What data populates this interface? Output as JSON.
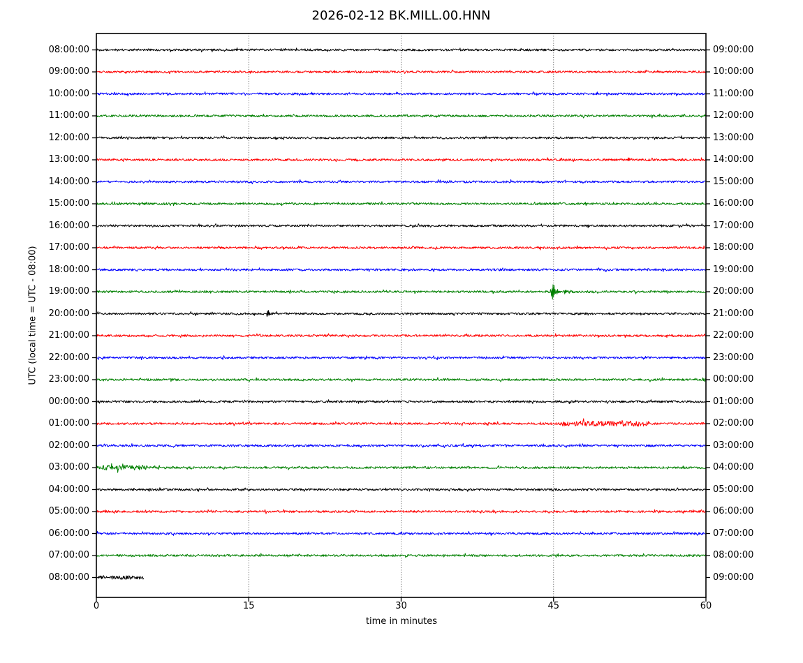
{
  "chart_data": {
    "type": "line",
    "subtype": "helicorder-dayplot",
    "title": "2026-02-12 BK.MILL.00.HNN",
    "xlabel": "time in minutes",
    "ylabel": "UTC (local time = UTC - 08:00)",
    "x_range": [
      0,
      60
    ],
    "x_ticks": [
      "0",
      "15",
      "30",
      "45",
      "60"
    ],
    "x_tick_values": [
      0,
      15,
      30,
      45,
      60
    ],
    "grid": {
      "vertical_minutes": [
        15,
        30,
        45
      ],
      "style": "dotted",
      "color": "#4a4a4a"
    },
    "legend_position": "none",
    "colors_cycle": [
      "#000000",
      "#ff0000",
      "#0000ff",
      "#008000"
    ],
    "rows": [
      {
        "left_label": "08:00:00",
        "right_label": "09:00:00",
        "color": "#000000",
        "t_start": 0,
        "t_end": 60,
        "events": [],
        "noise_segments": []
      },
      {
        "left_label": "09:00:00",
        "right_label": "10:00:00",
        "color": "#ff0000",
        "t_start": 0,
        "t_end": 60,
        "events": [],
        "noise_segments": []
      },
      {
        "left_label": "10:00:00",
        "right_label": "11:00:00",
        "color": "#0000ff",
        "t_start": 0,
        "t_end": 60,
        "events": [],
        "noise_segments": []
      },
      {
        "left_label": "11:00:00",
        "right_label": "12:00:00",
        "color": "#008000",
        "t_start": 0,
        "t_end": 60,
        "events": [
          {
            "t": 4.6,
            "amp": 1.5,
            "decay": 0.06
          }
        ],
        "noise_segments": []
      },
      {
        "left_label": "12:00:00",
        "right_label": "13:00:00",
        "color": "#000000",
        "t_start": 0,
        "t_end": 60,
        "events": [],
        "noise_segments": []
      },
      {
        "left_label": "13:00:00",
        "right_label": "14:00:00",
        "color": "#ff0000",
        "t_start": 0,
        "t_end": 60,
        "events": [],
        "noise_segments": []
      },
      {
        "left_label": "14:00:00",
        "right_label": "15:00:00",
        "color": "#0000ff",
        "t_start": 0,
        "t_end": 60,
        "events": [],
        "noise_segments": []
      },
      {
        "left_label": "15:00:00",
        "right_label": "16:00:00",
        "color": "#008000",
        "t_start": 0,
        "t_end": 60,
        "events": [
          {
            "t": 6.8,
            "amp": 2,
            "decay": 0.06
          },
          {
            "t": 10.1,
            "amp": 3,
            "decay": 0.07
          },
          {
            "t": 11.3,
            "amp": 2.5,
            "decay": 0.06
          },
          {
            "t": 21.4,
            "amp": 3,
            "decay": 0.08
          },
          {
            "t": 53.0,
            "amp": 2.5,
            "decay": 0.07
          },
          {
            "t": 54.3,
            "amp": 2.5,
            "decay": 0.07
          }
        ],
        "noise_segments": []
      },
      {
        "left_label": "16:00:00",
        "right_label": "17:00:00",
        "color": "#000000",
        "t_start": 0,
        "t_end": 60,
        "events": [
          {
            "t": 55.5,
            "amp": 2,
            "decay": 0.1
          }
        ],
        "noise_segments": []
      },
      {
        "left_label": "17:00:00",
        "right_label": "18:00:00",
        "color": "#ff0000",
        "t_start": 0,
        "t_end": 60,
        "events": [
          {
            "t": 13.2,
            "amp": 2.5,
            "decay": 0.07
          }
        ],
        "noise_segments": []
      },
      {
        "left_label": "18:00:00",
        "right_label": "19:00:00",
        "color": "#0000ff",
        "t_start": 0,
        "t_end": 60,
        "events": [],
        "noise_segments": []
      },
      {
        "left_label": "19:00:00",
        "right_label": "20:00:00",
        "color": "#008000",
        "t_start": 0,
        "t_end": 60,
        "events": [
          {
            "t": 44.75,
            "amp": 21,
            "decay": 0.42
          },
          {
            "t": 46.05,
            "amp": 9,
            "decay": 0.1
          },
          {
            "t": 46.5,
            "amp": 7,
            "decay": 0.1
          },
          {
            "t": 46.95,
            "amp": 5,
            "decay": 0.1
          },
          {
            "t": 54.0,
            "amp": 2,
            "decay": 0.07
          }
        ],
        "noise_segments": []
      },
      {
        "left_label": "20:00:00",
        "right_label": "21:00:00",
        "color": "#000000",
        "t_start": 0,
        "t_end": 60,
        "events": [
          {
            "t": 13.75,
            "amp": 5,
            "decay": 0.08
          },
          {
            "t": 15.4,
            "amp": 7,
            "decay": 0.12
          },
          {
            "t": 16.0,
            "amp": 8,
            "decay": 0.12
          },
          {
            "t": 16.75,
            "amp": 11,
            "decay": 0.22
          }
        ],
        "noise_segments": []
      },
      {
        "left_label": "21:00:00",
        "right_label": "22:00:00",
        "color": "#ff0000",
        "t_start": 0,
        "t_end": 60,
        "events": [],
        "noise_segments": []
      },
      {
        "left_label": "22:00:00",
        "right_label": "23:00:00",
        "color": "#0000ff",
        "t_start": 0,
        "t_end": 60,
        "events": [],
        "noise_segments": []
      },
      {
        "left_label": "23:00:00",
        "right_label": "00:00:00",
        "color": "#008000",
        "t_start": 0,
        "t_end": 60,
        "events": [
          {
            "t": 2.7,
            "amp": 1.5,
            "decay": 0.08
          }
        ],
        "noise_segments": []
      },
      {
        "left_label": "00:00:00",
        "right_label": "01:00:00",
        "color": "#000000",
        "t_start": 0,
        "t_end": 60,
        "events": [
          {
            "t": 24.5,
            "amp": 3.5,
            "decay": 0.07
          }
        ],
        "noise_segments": []
      },
      {
        "left_label": "01:00:00",
        "right_label": "02:00:00",
        "color": "#ff0000",
        "t_start": 0,
        "t_end": 60,
        "events": [],
        "noise_segments": [
          {
            "start": 45.5,
            "end": 54.5,
            "mult": 2.4
          }
        ]
      },
      {
        "left_label": "02:00:00",
        "right_label": "03:00:00",
        "color": "#0000ff",
        "t_start": 0,
        "t_end": 60,
        "events": [],
        "noise_segments": []
      },
      {
        "left_label": "03:00:00",
        "right_label": "04:00:00",
        "color": "#008000",
        "t_start": 0,
        "t_end": 60,
        "events": [],
        "noise_segments": [
          {
            "start": 0,
            "end": 5,
            "mult": 2.3
          }
        ]
      },
      {
        "left_label": "04:00:00",
        "right_label": "05:00:00",
        "color": "#000000",
        "t_start": 0,
        "t_end": 60,
        "events": [],
        "noise_segments": []
      },
      {
        "left_label": "05:00:00",
        "right_label": "06:00:00",
        "color": "#ff0000",
        "t_start": 0,
        "t_end": 60,
        "events": [],
        "noise_segments": []
      },
      {
        "left_label": "06:00:00",
        "right_label": "07:00:00",
        "color": "#0000ff",
        "t_start": 0,
        "t_end": 60,
        "events": [],
        "noise_segments": []
      },
      {
        "left_label": "07:00:00",
        "right_label": "08:00:00",
        "color": "#008000",
        "t_start": 0,
        "t_end": 60,
        "events": [],
        "noise_segments": []
      },
      {
        "left_label": "08:00:00",
        "right_label": "09:00:00",
        "color": "#000000",
        "t_start": 0,
        "t_end": 4.67,
        "events": [],
        "noise_segments": [
          {
            "start": 0,
            "end": 4.67,
            "mult": 1.7
          }
        ]
      }
    ]
  }
}
